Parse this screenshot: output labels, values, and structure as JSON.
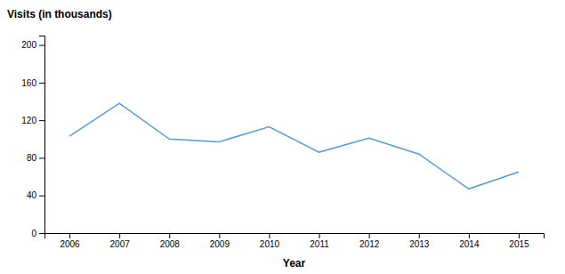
{
  "chart_data": {
    "type": "line",
    "xlabel": "Year",
    "ylabel": "Visits (in thousands)",
    "x": [
      2006,
      2007,
      2008,
      2009,
      2010,
      2011,
      2012,
      2013,
      2014,
      2015
    ],
    "values": [
      103,
      138,
      100,
      97,
      113,
      86,
      101,
      84,
      47,
      65
    ],
    "color": "#5b9bd5",
    "xlim": [
      2005.5,
      2015.5
    ],
    "xticks": [
      2006,
      2007,
      2008,
      2009,
      2010,
      2011,
      2012,
      2013,
      2014,
      2015
    ],
    "ylim": [
      0,
      210
    ],
    "yticks": [
      0,
      40,
      80,
      120,
      160,
      200
    ],
    "grid": false
  }
}
